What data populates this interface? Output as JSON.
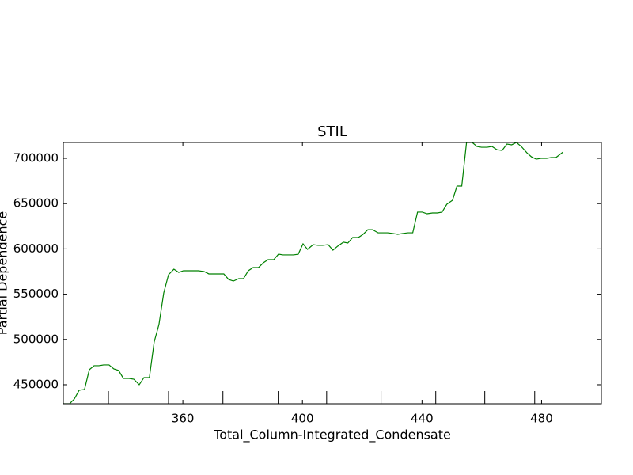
{
  "chart_data": {
    "type": "line",
    "title": "STIL",
    "x_label": "Total_Column-Integrated_Condensate",
    "y_label": "Partial Dependence",
    "xlim": [
      320,
      500
    ],
    "ylim": [
      429000,
      717500
    ],
    "xticks": [
      360,
      400,
      440,
      480
    ],
    "yticks": [
      450000,
      500000,
      550000,
      600000,
      650000,
      700000
    ],
    "deciles": [
      335.1,
      355.2,
      373.4,
      391.9,
      408.1,
      426.3,
      444.6,
      461.0,
      477.7
    ],
    "series": [
      {
        "color": "#008000",
        "x": [
          320,
          322.1,
          323.7,
          325.3,
          327.1,
          328.7,
          330.3,
          331.9,
          333.5,
          335.3,
          336.9,
          338.5,
          340.1,
          342.0,
          343.6,
          345.4,
          347.0,
          348.8,
          350.4,
          352.0,
          353.6,
          355.2,
          357.0,
          358.6,
          360.2,
          361.8,
          363.7,
          365.2,
          367.1,
          368.7,
          370.3,
          372.1,
          373.7,
          375.3,
          376.9,
          378.7,
          380.3,
          381.9,
          383.5,
          385.3,
          386.9,
          388.5,
          390.4,
          392.0,
          393.5,
          395.1,
          397.0,
          398.6,
          400.2,
          401.7,
          403.6,
          405.2,
          406.8,
          408.6,
          410.2,
          411.8,
          413.7,
          415.2,
          416.8,
          418.7,
          420.3,
          421.9,
          423.4,
          425.3,
          426.9,
          428.5,
          430.3,
          431.9,
          433.5,
          435.3,
          436.9,
          438.5,
          440.1,
          441.7,
          443.5,
          445.1,
          446.7,
          448.3,
          450.2,
          451.7,
          453.3,
          454.9,
          456.8,
          458.4,
          459.9,
          461.8,
          463.4,
          465.0,
          466.8,
          468.4,
          470.0,
          471.6,
          473.2,
          475.1,
          476.6,
          478.2,
          479.8,
          481.7,
          483.2,
          484.8,
          487.2
        ],
        "values": [
          429000,
          429000,
          434300,
          443900,
          444800,
          466600,
          471000,
          471000,
          471900,
          471900,
          467500,
          465800,
          457000,
          457000,
          456100,
          450000,
          457900,
          457900,
          497200,
          516500,
          551400,
          571500,
          577600,
          574100,
          575900,
          575900,
          575900,
          575900,
          575000,
          572400,
          572400,
          572400,
          572400,
          566300,
          564500,
          567200,
          567200,
          575900,
          579400,
          579400,
          584600,
          588100,
          588100,
          594200,
          593400,
          593400,
          593400,
          594200,
          605600,
          599500,
          604700,
          603900,
          603900,
          604700,
          598600,
          603000,
          607400,
          606500,
          612600,
          612600,
          616100,
          621300,
          621300,
          617800,
          617800,
          617800,
          617000,
          616100,
          617000,
          617800,
          617800,
          640600,
          640600,
          638800,
          639700,
          639700,
          640600,
          649300,
          653700,
          669400,
          669400,
          717500,
          717500,
          713100,
          712200,
          712200,
          713100,
          709600,
          708700,
          715700,
          714900,
          717500,
          713100,
          706100,
          701700,
          699100,
          700000,
          700000,
          700900,
          700900,
          707000
        ]
      }
    ]
  }
}
